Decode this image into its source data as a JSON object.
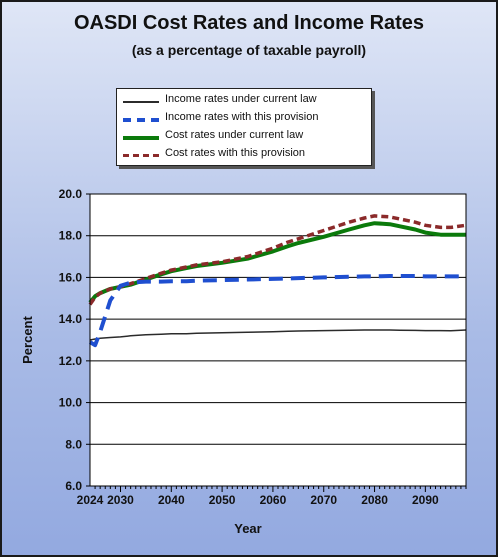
{
  "title": "OASDI Cost Rates and Income Rates",
  "subtitle": "(as a percentage of taxable payroll)",
  "colors": {
    "income_current": "#2b2b2b",
    "income_provision": "#1f4fd0",
    "cost_current": "#0b7a0b",
    "cost_provision": "#8b2a2a"
  },
  "chart_data": {
    "type": "line",
    "title": "OASDI Cost Rates and Income Rates",
    "subtitle": "(as a percentage of taxable payroll)",
    "xlabel": "Year",
    "ylabel": "Percent",
    "xlim": [
      2024,
      2098
    ],
    "ylim": [
      6.0,
      20.0
    ],
    "x_ticks": [
      2024,
      2030,
      2040,
      2050,
      2060,
      2070,
      2080,
      2090
    ],
    "y_ticks": [
      "6.0",
      "8.0",
      "10.0",
      "12.0",
      "14.0",
      "16.0",
      "18.0",
      "20.0"
    ],
    "grid": "horizontal",
    "legend_position": "top-center",
    "x": [
      2024,
      2025,
      2026,
      2028,
      2030,
      2032,
      2035,
      2038,
      2040,
      2043,
      2045,
      2050,
      2055,
      2060,
      2063,
      2065,
      2070,
      2075,
      2078,
      2080,
      2083,
      2085,
      2088,
      2090,
      2093,
      2095,
      2098
    ],
    "series": [
      {
        "name": "Income rates under current law",
        "style": "solid-thin",
        "values": [
          13.0,
          13.05,
          13.08,
          13.12,
          13.15,
          13.2,
          13.25,
          13.28,
          13.3,
          13.3,
          13.32,
          13.35,
          13.37,
          13.4,
          13.42,
          13.43,
          13.45,
          13.47,
          13.48,
          13.48,
          13.48,
          13.47,
          13.46,
          13.45,
          13.45,
          13.44,
          13.48
        ]
      },
      {
        "name": "Income rates with this provision",
        "style": "dashed-blue",
        "values": [
          12.9,
          12.75,
          13.4,
          14.9,
          15.6,
          15.75,
          15.8,
          15.8,
          15.82,
          15.82,
          15.85,
          15.87,
          15.9,
          15.93,
          15.95,
          15.97,
          16.0,
          16.03,
          16.05,
          16.05,
          16.07,
          16.07,
          16.07,
          16.05,
          16.05,
          16.05,
          16.05
        ]
      },
      {
        "name": "Cost rates under current law",
        "style": "solid-green",
        "values": [
          14.8,
          15.1,
          15.25,
          15.45,
          15.55,
          15.65,
          15.9,
          16.15,
          16.3,
          16.45,
          16.55,
          16.7,
          16.9,
          17.25,
          17.5,
          17.65,
          17.95,
          18.3,
          18.5,
          18.6,
          18.55,
          18.45,
          18.3,
          18.15,
          18.05,
          18.05,
          18.05
        ]
      },
      {
        "name": "Cost rates with this provision",
        "style": "dashed-red",
        "values": [
          14.7,
          15.05,
          15.25,
          15.45,
          15.55,
          15.7,
          15.95,
          16.2,
          16.35,
          16.5,
          16.6,
          16.75,
          17.0,
          17.4,
          17.7,
          17.85,
          18.25,
          18.65,
          18.85,
          18.95,
          18.9,
          18.8,
          18.65,
          18.5,
          18.4,
          18.4,
          18.5
        ]
      }
    ]
  }
}
